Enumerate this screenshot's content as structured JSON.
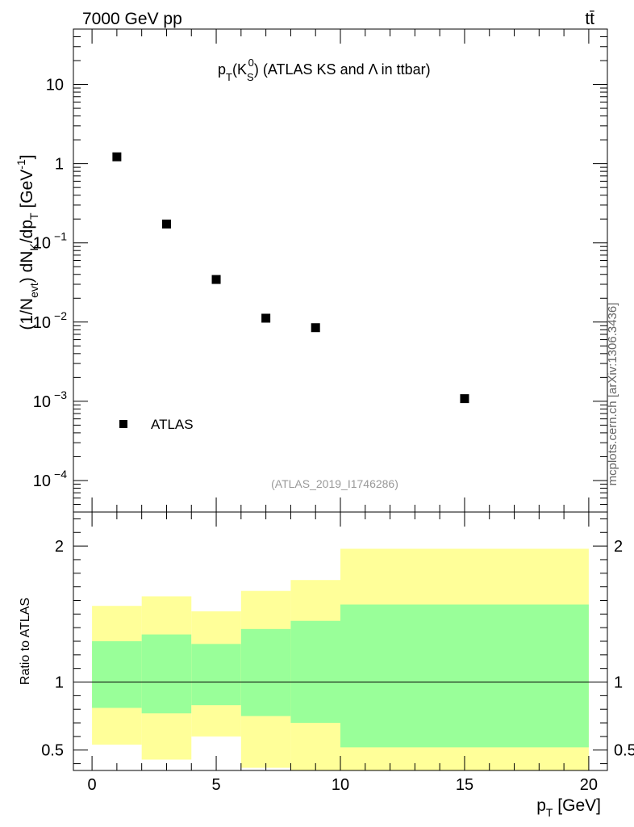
{
  "header": {
    "left": "7000 GeV pp",
    "right": "tt̄"
  },
  "side_label": "mcplots.cern.ch [arXiv:1306.3436]",
  "chart_data": [
    {
      "type": "scatter",
      "title": "p_T(K_S^0) (ATLAS KS and Λ in ttbar)",
      "title_parts": {
        "p": "p",
        "T": "T",
        "K": "(K",
        "S": "S",
        "zero": "0",
        "rest": ") (ATLAS KS and Λ in ttbar)"
      },
      "ylabel": "(1/N_evt) dN_K/dp_T [GeV^-1]",
      "ylabel_parts": {
        "a": "(1/N",
        "evt": "evt",
        "b": ") dN",
        "K": "K",
        "c": "/dp",
        "T": "T",
        "d": " [GeV",
        "e": "-1",
        "f": "]"
      },
      "yscale": "log",
      "ylim": [
        4e-05,
        50
      ],
      "xlim": [
        -0.75,
        20.75
      ],
      "y_ticks": [
        {
          "value": 10,
          "base": "10",
          "exp": ""
        },
        {
          "value": 1,
          "base": "1",
          "exp": ""
        },
        {
          "value": 0.1,
          "base": "10",
          "exp": "−1"
        },
        {
          "value": 0.01,
          "base": "10",
          "exp": "−2"
        },
        {
          "value": 0.001,
          "base": "10",
          "exp": "−3"
        },
        {
          "value": 0.0001,
          "base": "10",
          "exp": "−4"
        }
      ],
      "series": [
        {
          "name": "ATLAS",
          "marker": "square",
          "color": "#000000",
          "x": [
            1,
            3,
            5,
            7,
            9,
            15
          ],
          "y": [
            1.22,
            0.173,
            0.0345,
            0.0112,
            0.0085,
            0.00108
          ]
        }
      ],
      "legend": {
        "entries": [
          "ATLAS"
        ],
        "placement": "bottom-left"
      },
      "annotation": "(ATLAS_2019_I1746286)",
      "annotation_color": "#999999"
    },
    {
      "type": "area",
      "ylabel": "Ratio to ATLAS",
      "xlabel": "p_T [GeV]",
      "xlabel_parts": {
        "p": "p",
        "T": "T",
        "unit": " [GeV]"
      },
      "xlim": [
        -0.75,
        20.75
      ],
      "ylim": [
        0.35,
        2.25
      ],
      "x_ticks": [
        0,
        5,
        10,
        15,
        20
      ],
      "x_tick_labels": [
        "0",
        "5",
        "10",
        "15",
        "20"
      ],
      "y_ticks": [
        0.5,
        1,
        2
      ],
      "y_tick_labels": [
        "0.5",
        "1",
        "2"
      ],
      "reference_line": 1,
      "bins": [
        {
          "low": 0,
          "high": 2,
          "inner": [
            0.81,
            1.3
          ],
          "outer": [
            0.54,
            1.56
          ]
        },
        {
          "low": 2,
          "high": 4,
          "inner": [
            0.77,
            1.35
          ],
          "outer": [
            0.43,
            1.63
          ]
        },
        {
          "low": 4,
          "high": 6,
          "inner": [
            0.83,
            1.28
          ],
          "outer": [
            0.6,
            1.52
          ]
        },
        {
          "low": 6,
          "high": 8,
          "inner": [
            0.75,
            1.39
          ],
          "outer": [
            0.37,
            1.67
          ]
        },
        {
          "low": 8,
          "high": 10,
          "inner": [
            0.7,
            1.45
          ],
          "outer": [
            0.35,
            1.75
          ]
        },
        {
          "low": 10,
          "high": 20,
          "inner": [
            0.52,
            1.57
          ],
          "outer": [
            0.35,
            1.98
          ]
        }
      ],
      "colors": {
        "inner": "#99ff99",
        "outer": "#ffff99"
      }
    }
  ]
}
